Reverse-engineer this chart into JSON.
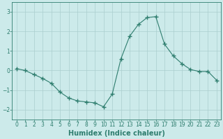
{
  "x": [
    0,
    1,
    2,
    3,
    4,
    5,
    6,
    7,
    8,
    9,
    10,
    11,
    12,
    13,
    14,
    15,
    16,
    17,
    18,
    19,
    20,
    21,
    22,
    23
  ],
  "y": [
    0.1,
    0.0,
    -0.2,
    -0.4,
    -0.65,
    -1.1,
    -1.4,
    -1.55,
    -1.6,
    -1.65,
    -1.85,
    -1.2,
    0.6,
    1.75,
    2.35,
    2.7,
    2.75,
    1.35,
    0.75,
    0.35,
    0.05,
    -0.05,
    -0.05,
    -0.5
  ],
  "line_color": "#2e7d6e",
  "marker": "+",
  "marker_size": 4,
  "bg_color": "#cceaea",
  "grid_color": "#aacece",
  "xlabel": "Humidex (Indice chaleur)",
  "xlim": [
    -0.5,
    23.5
  ],
  "ylim": [
    -2.5,
    3.5
  ],
  "yticks": [
    -2,
    -1,
    0,
    1,
    2,
    3
  ],
  "xticks": [
    0,
    1,
    2,
    3,
    4,
    5,
    6,
    7,
    8,
    9,
    10,
    11,
    12,
    13,
    14,
    15,
    16,
    17,
    18,
    19,
    20,
    21,
    22,
    23
  ],
  "tick_color": "#2e7d6e",
  "label_fontsize": 7,
  "tick_fontsize": 5.5
}
